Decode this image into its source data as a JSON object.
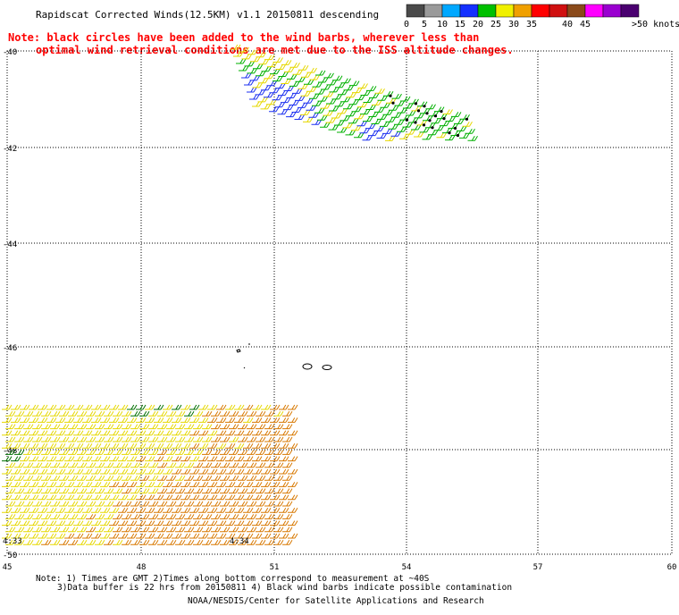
{
  "header": {
    "title": "Rapidscat Corrected Winds(12.5KM) v1.1 20150811 descending",
    "note_line1": "Note: black circles have been added to the wind barbs, wherever less than",
    "note_line2": "optimal wind retrieval conditions are met due to the ISS altitude changes."
  },
  "legend": {
    "unit": ">50 knots",
    "bins": [
      {
        "label": "0",
        "color": "#4a4a4a"
      },
      {
        "label": "5",
        "color": "#9a9a9a"
      },
      {
        "label": "10",
        "color": "#00a8ff"
      },
      {
        "label": "15",
        "color": "#1430ff"
      },
      {
        "label": "20",
        "color": "#00c000"
      },
      {
        "label": "25",
        "color": "#f0f000"
      },
      {
        "label": "30",
        "color": "#f0a000"
      },
      {
        "label": "35",
        "color": "#ff0000"
      },
      {
        "label": "",
        "color": "#d01010"
      },
      {
        "label": "40",
        "color": "#8a4a1a"
      },
      {
        "label": "45",
        "color": "#ff00ff"
      },
      {
        "label": "",
        "color": "#9a00d0"
      },
      {
        "label": "",
        "color": "#4a0070"
      }
    ]
  },
  "map": {
    "lat_labels": [
      "-40",
      "-42",
      "-44",
      "-46",
      "-48",
      "-50"
    ],
    "lon_labels": [
      "45",
      "48",
      "51",
      "54",
      "57",
      "60"
    ],
    "time_labels": [
      "4:33",
      "4:34"
    ],
    "colors": {
      "grid": "#000000",
      "yellow": "#e6d800",
      "orange": "#d87800",
      "green": "#00b000",
      "darkgreen": "#007000",
      "blue": "#1c30f0",
      "timestamp": "#5a008a",
      "note": "#ff0000"
    }
  },
  "footer": {
    "line1": "Note: 1) Times are GMT 2)Times along bottom correspond to measurement at ~40S",
    "line2": "3)Data buffer is 22 hrs from 20150811 4) Black wind barbs indicate possible contamination",
    "line3": "NOAA/NESDIS/Center for Satellite Applications and Research"
  }
}
